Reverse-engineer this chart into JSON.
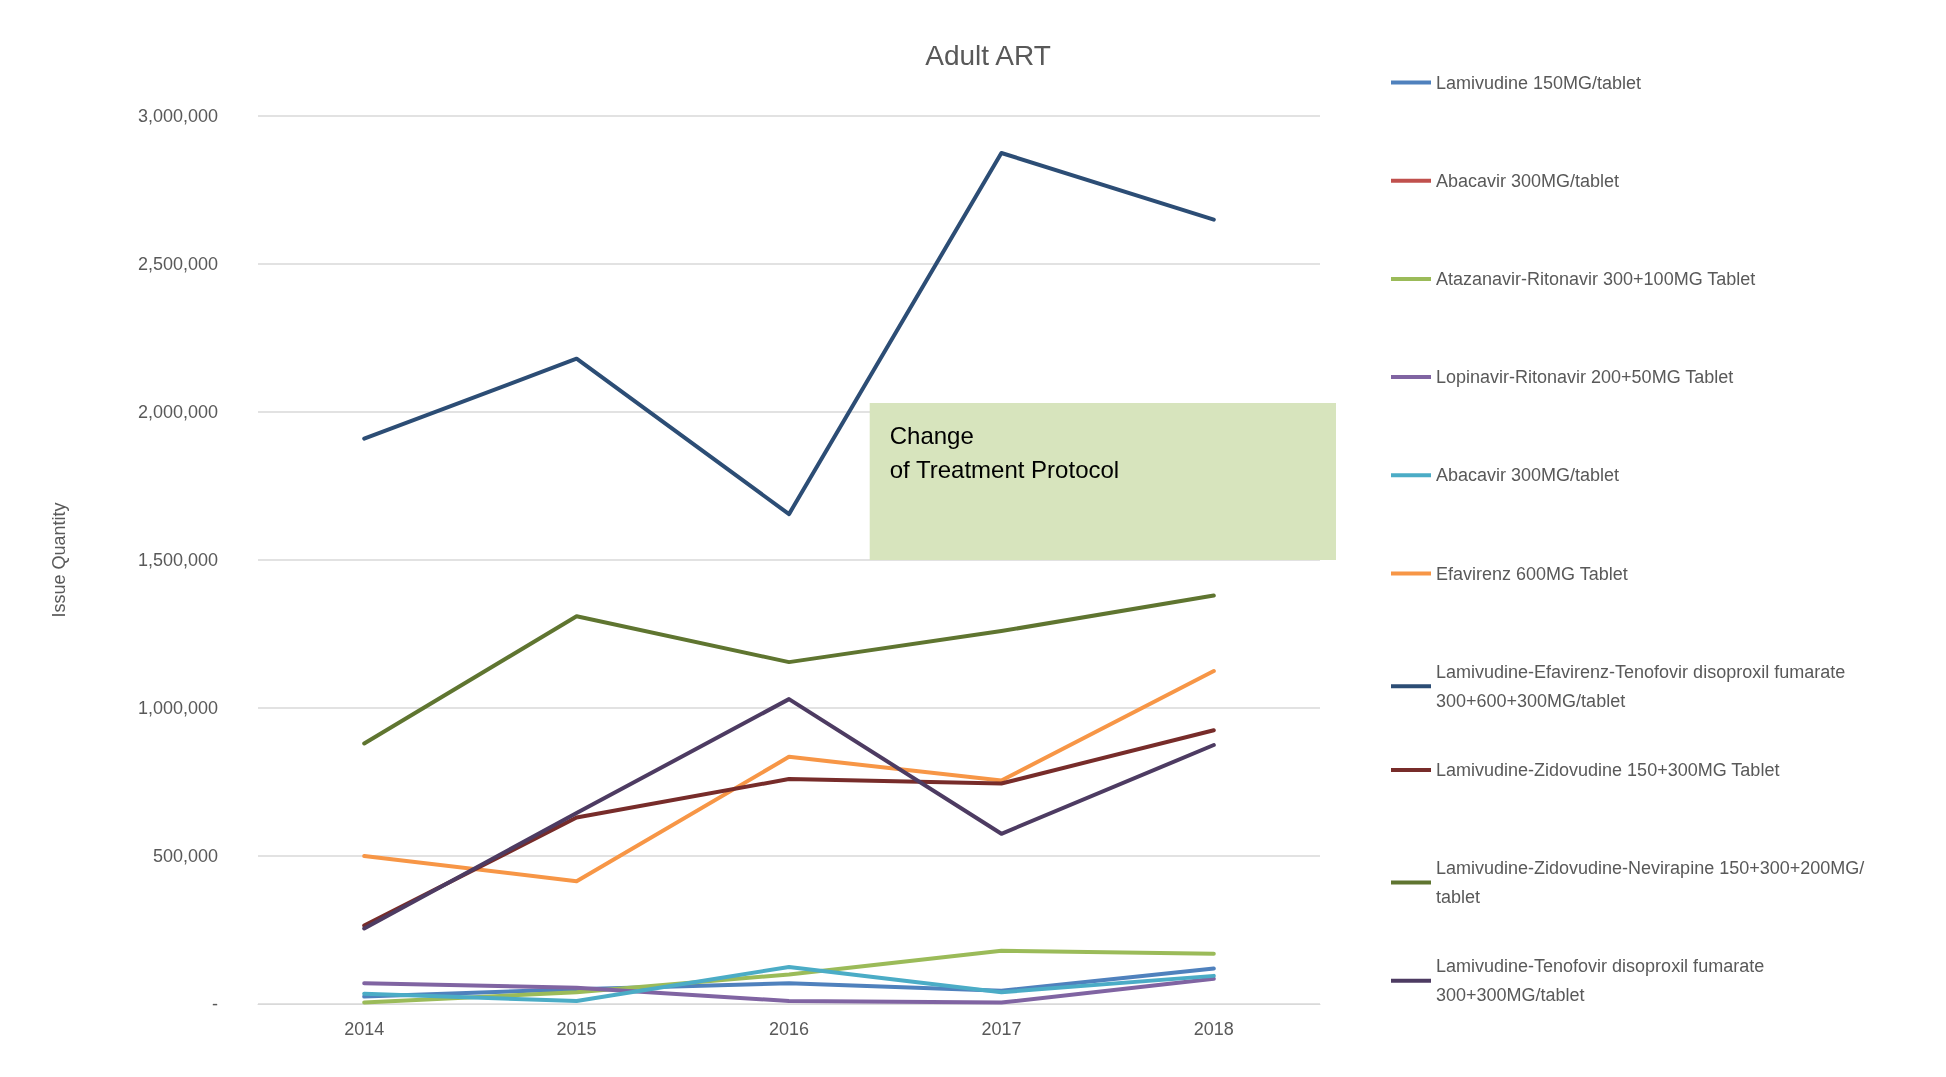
{
  "chart_data": {
    "type": "line",
    "title": "Adult ART",
    "ylabel": "Issue Quantity",
    "categories": [
      "2014",
      "2015",
      "2016",
      "2017",
      "2018"
    ],
    "ylim": [
      0,
      3000000
    ],
    "yticks": [
      {
        "value": 0,
        "label": "-"
      },
      {
        "value": 500000,
        "label": "500,000"
      },
      {
        "value": 1000000,
        "label": "1,000,000"
      },
      {
        "value": 1500000,
        "label": "1,500,000"
      },
      {
        "value": 2000000,
        "label": "2,000,000"
      },
      {
        "value": 2500000,
        "label": "2,500,000"
      },
      {
        "value": 3000000,
        "label": "3,000,000"
      }
    ],
    "grid": "y",
    "legend": "right",
    "marker": "none",
    "line_style": "solid",
    "bands": [
      {
        "axis": "y",
        "from": 1500000,
        "to": 2030000,
        "label": "Change\nof Treatment Protocol",
        "color": "#d7e4bd"
      }
    ],
    "series": [
      {
        "name": "Lamivudine 150MG/tablet",
        "color": "#4f81bd",
        "values": [
          25000,
          50000,
          70000,
          45000,
          120000
        ]
      },
      {
        "name": "Abacavir 300MG/tablet",
        "color": "#c0504d",
        "values": [
          null,
          null,
          null,
          null,
          null
        ]
      },
      {
        "name": "Atazanavir-Ritonavir 300+100MG Tablet",
        "color": "#9bbb59",
        "values": [
          5000,
          40000,
          100000,
          180000,
          170000
        ]
      },
      {
        "name": "Lopinavir-Ritonavir 200+50MG Tablet",
        "color": "#8064a2",
        "values": [
          70000,
          55000,
          10000,
          5000,
          85000
        ]
      },
      {
        "name": "Abacavir 300MG/tablet",
        "color": "#4bacc6",
        "values": [
          35000,
          10000,
          125000,
          40000,
          95000
        ]
      },
      {
        "name": "Efavirenz 600MG Tablet",
        "color": "#f79646",
        "values": [
          500000,
          415000,
          835000,
          755000,
          1125000
        ]
      },
      {
        "name": "Lamivudine-Efavirenz-Tenofovir disoproxil fumarate 300+600+300MG/tablet",
        "color": "#2c4d75",
        "values": [
          1910000,
          2180000,
          1655000,
          2875000,
          2650000
        ]
      },
      {
        "name": "Lamivudine-Zidovudine 150+300MG Tablet",
        "color": "#772c2a",
        "values": [
          265000,
          630000,
          760000,
          745000,
          925000
        ]
      },
      {
        "name": "Lamivudine-Zidovudine-Nevirapine 150+300+200MG/tablet",
        "color": "#5f7530",
        "values": [
          880000,
          1310000,
          1155000,
          1260000,
          1380000
        ]
      },
      {
        "name": "Lamivudine-Tenofovir disoproxil fumarate 300+300MG/tablet",
        "color": "#4d3b62",
        "values": [
          255000,
          645000,
          1030000,
          575000,
          875000
        ]
      }
    ]
  }
}
